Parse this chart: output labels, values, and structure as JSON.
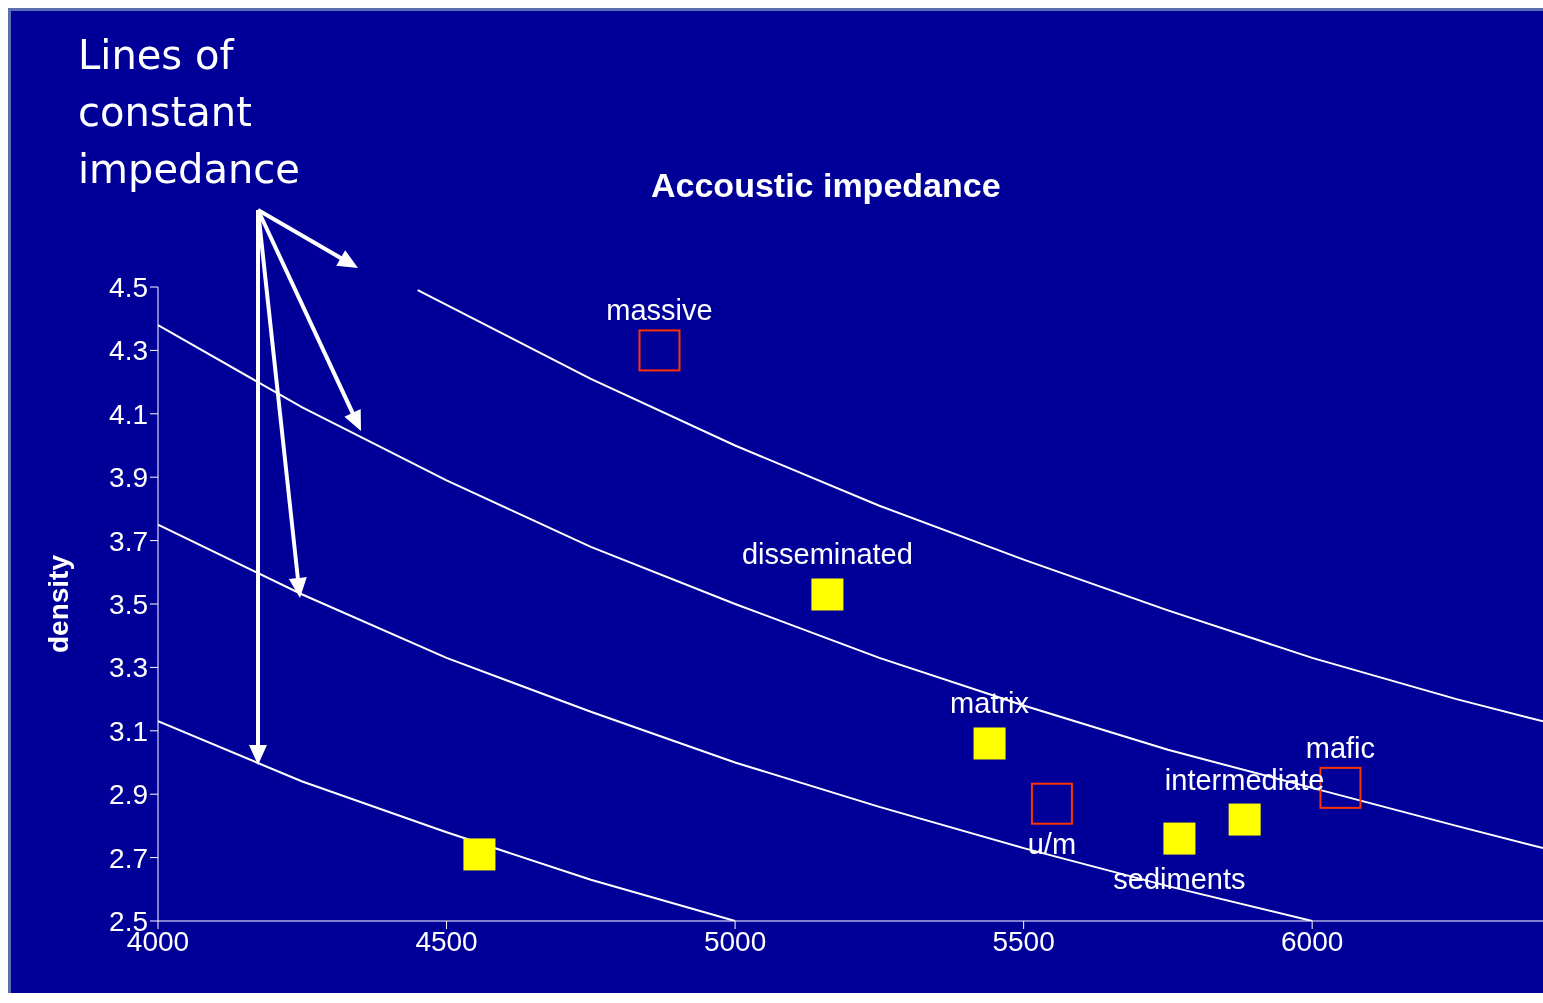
{
  "chart_data": {
    "type": "line",
    "title": "Accoustic impedance",
    "ylabel": "density",
    "xlim": [
      4000,
      6400
    ],
    "xticks": [
      4000,
      4500,
      5000,
      5500,
      6000
    ],
    "ylim": [
      2.5,
      4.5
    ],
    "yticks": [
      2.5,
      2.7,
      2.9,
      3.1,
      3.3,
      3.5,
      3.7,
      3.9,
      4.1,
      4.3,
      4.5
    ],
    "grid": false,
    "marker": "none",
    "line_style": "solid",
    "series": [
      {
        "color": "#ffffff",
        "x": [
          4000,
          4250,
          4500,
          4750,
          5000
        ],
        "values": [
          3.13,
          2.94,
          2.78,
          2.63,
          2.5
        ]
      },
      {
        "color": "#ffffff",
        "x": [
          4000,
          4250,
          4500,
          4750,
          5000,
          5250,
          5500,
          5750,
          6000
        ],
        "values": [
          3.75,
          3.53,
          3.33,
          3.16,
          3.0,
          2.86,
          2.73,
          2.61,
          2.5
        ]
      },
      {
        "color": "#ffffff",
        "x": [
          4000,
          4250,
          4500,
          4750,
          5000,
          5250,
          5500,
          5750,
          6000,
          6250,
          6400
        ],
        "values": [
          4.38,
          4.12,
          3.89,
          3.68,
          3.5,
          3.33,
          3.18,
          3.04,
          2.92,
          2.8,
          2.73
        ]
      },
      {
        "color": "#ffffff",
        "x": [
          4450,
          4750,
          5000,
          5250,
          5500,
          5750,
          6000,
          6250,
          6400
        ],
        "values": [
          4.49,
          4.21,
          4.0,
          3.81,
          3.64,
          3.48,
          3.33,
          3.2,
          3.13
        ]
      },
      {
        "type": "scatter",
        "marker": "square",
        "color": "#ffff00",
        "x": [
          4557,
          5160,
          5441,
          5770,
          5883
        ],
        "values": [
          2.71,
          3.53,
          3.06,
          2.76,
          2.82
        ]
      },
      {
        "type": "scatter",
        "marker": "square",
        "color": "#ff3300",
        "x": [
          4869,
          5549,
          6049
        ],
        "values": [
          4.3,
          2.87,
          2.92
        ]
      }
    ],
    "annotations": [
      "Lines of constant impedance",
      {
        "text": "massive",
        "x": 4869,
        "y": 4.3
      },
      {
        "text": "disseminated",
        "x": 5160,
        "y": 3.53
      },
      {
        "text": "matrix",
        "x": 5441,
        "y": 3.06
      },
      {
        "text": "u/m",
        "x": 5549,
        "y": 2.87
      },
      {
        "text": "intermediate",
        "x": 5883,
        "y": 2.82
      },
      {
        "text": "sediments",
        "x": 5770,
        "y": 2.76
      },
      {
        "text": "mafic",
        "x": 6049,
        "y": 2.92
      }
    ]
  }
}
